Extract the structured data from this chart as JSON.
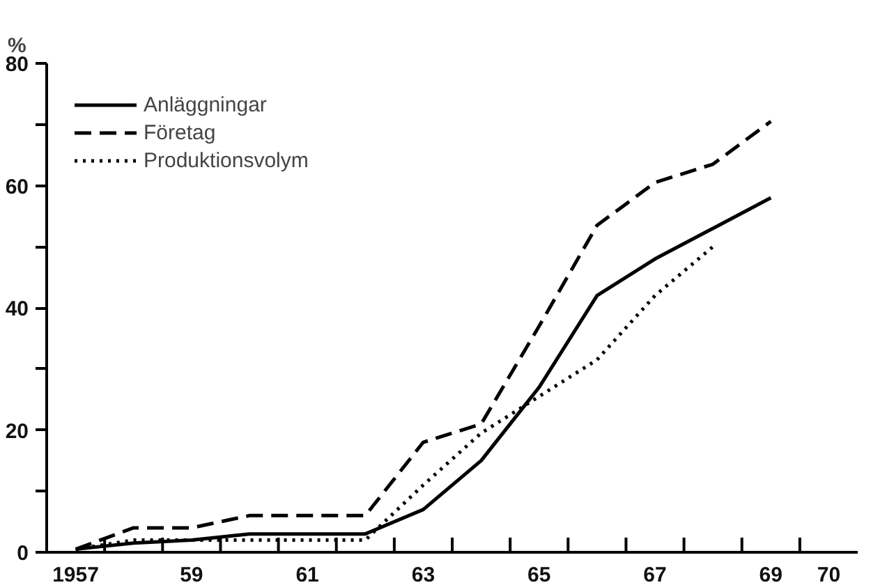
{
  "chart_data": {
    "type": "line",
    "ylabel": "%",
    "x": [
      1957,
      1958,
      1959,
      1960,
      1961,
      1962,
      1963,
      1964,
      1965,
      1966,
      1967,
      1968,
      1969
    ],
    "series": [
      {
        "name": "Anläggningar",
        "color": "#000000",
        "line_style": "solid",
        "values": [
          0.5,
          1.5,
          2,
          3,
          3,
          3,
          7,
          15,
          27,
          42,
          48,
          53,
          58
        ]
      },
      {
        "name": "Företag",
        "color": "#000000",
        "line_style": "dashed",
        "values": [
          0.5,
          4,
          4,
          6,
          6,
          6,
          18,
          21,
          37,
          53.5,
          60.5,
          63.5,
          70.5
        ]
      },
      {
        "name": "Produktionsvolym",
        "color": "#000000",
        "line_style": "dotted",
        "values": [
          0.5,
          2,
          2,
          2,
          2,
          2,
          11,
          19.5,
          25.5,
          31.5,
          42,
          50,
          null
        ]
      }
    ],
    "xlim": [
      1956.5,
      1970.5
    ],
    "xticks": [
      {
        "value": 1957,
        "label": "1957"
      },
      {
        "value": 1957.5,
        "label": null
      },
      {
        "value": 1958.5,
        "label": null
      },
      {
        "value": 1959,
        "label": "59"
      },
      {
        "value": 1959.5,
        "label": null
      },
      {
        "value": 1960.5,
        "label": null
      },
      {
        "value": 1961,
        "label": "61"
      },
      {
        "value": 1961.5,
        "label": null
      },
      {
        "value": 1962.5,
        "label": null
      },
      {
        "value": 1963,
        "label": "63"
      },
      {
        "value": 1963.5,
        "label": null
      },
      {
        "value": 1964.5,
        "label": null
      },
      {
        "value": 1965,
        "label": "65"
      },
      {
        "value": 1965.5,
        "label": null
      },
      {
        "value": 1966.5,
        "label": null
      },
      {
        "value": 1967,
        "label": "67"
      },
      {
        "value": 1967.5,
        "label": null
      },
      {
        "value": 1968.5,
        "label": null
      },
      {
        "value": 1969,
        "label": "69"
      },
      {
        "value": 1969.5,
        "label": null
      },
      {
        "value": 1970,
        "label": "70"
      }
    ],
    "ylim": [
      0,
      80
    ],
    "yticks": [
      0,
      {
        "value": 10,
        "label": null
      },
      20,
      {
        "value": 30,
        "label": null
      },
      40,
      {
        "value": 50,
        "label": null
      },
      60,
      {
        "value": 70,
        "label": null
      },
      80
    ],
    "legend": "top left",
    "grid": false
  }
}
